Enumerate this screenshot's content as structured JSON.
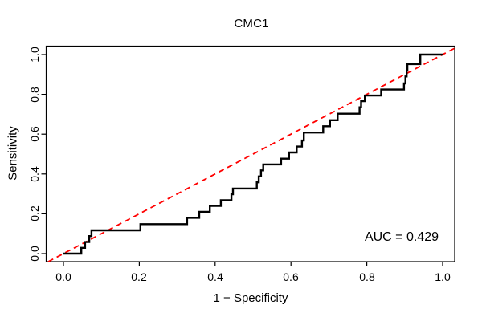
{
  "title": "CMC1",
  "plot": {
    "x_axis": {
      "label": "1 − Specificity",
      "tick_labels": [
        "0.0",
        "0.2",
        "0.4",
        "0.6",
        "0.8",
        "1.0"
      ]
    },
    "y_axis": {
      "label": "Sensitivity",
      "tick_labels": [
        "0.0",
        "0.2",
        "0.4",
        "0.6",
        "0.8",
        "1.0"
      ]
    },
    "annotation": "AUC = 0.429"
  },
  "colors": {
    "roc_curve": "#000000",
    "diagonal": "#ff0000",
    "frame": "#000000",
    "background": "#ffffff",
    "text": "#000000"
  },
  "chart_data": {
    "type": "line",
    "subtype": "roc-step-curve",
    "title": "CMC1",
    "xlabel": "1 − Specificity",
    "ylabel": "Sensitivity",
    "xlim": [
      0,
      1
    ],
    "ylim": [
      0,
      1
    ],
    "x_ticks": [
      0,
      0.2,
      0.4,
      0.6,
      0.8,
      1.0
    ],
    "y_ticks": [
      0,
      0.2,
      0.4,
      0.6,
      0.8,
      1.0
    ],
    "grid": false,
    "legend": "none",
    "auc": 0.429,
    "series": [
      {
        "name": "chance diagonal",
        "color": "#ff0000",
        "style": "dashed",
        "line_width": 1.8,
        "extend_to_frame": true,
        "points": [
          [
            0,
            0
          ],
          [
            1,
            1
          ]
        ]
      },
      {
        "name": "ROC curve",
        "color": "#000000",
        "style": "solid-step",
        "line_width": 2.4,
        "extend_to_frame": false,
        "points": [
          [
            0.0,
            0.0
          ],
          [
            0.047,
            0.0
          ],
          [
            0.047,
            0.029
          ],
          [
            0.057,
            0.029
          ],
          [
            0.057,
            0.058
          ],
          [
            0.068,
            0.058
          ],
          [
            0.068,
            0.088
          ],
          [
            0.074,
            0.088
          ],
          [
            0.074,
            0.117
          ],
          [
            0.203,
            0.117
          ],
          [
            0.203,
            0.148
          ],
          [
            0.326,
            0.148
          ],
          [
            0.326,
            0.18
          ],
          [
            0.358,
            0.18
          ],
          [
            0.358,
            0.21
          ],
          [
            0.386,
            0.21
          ],
          [
            0.386,
            0.24
          ],
          [
            0.415,
            0.24
          ],
          [
            0.415,
            0.268
          ],
          [
            0.443,
            0.268
          ],
          [
            0.443,
            0.298
          ],
          [
            0.447,
            0.298
          ],
          [
            0.447,
            0.327
          ],
          [
            0.51,
            0.327
          ],
          [
            0.51,
            0.358
          ],
          [
            0.515,
            0.358
          ],
          [
            0.515,
            0.388
          ],
          [
            0.521,
            0.388
          ],
          [
            0.521,
            0.418
          ],
          [
            0.527,
            0.418
          ],
          [
            0.527,
            0.448
          ],
          [
            0.574,
            0.448
          ],
          [
            0.574,
            0.477
          ],
          [
            0.595,
            0.477
          ],
          [
            0.595,
            0.508
          ],
          [
            0.615,
            0.508
          ],
          [
            0.615,
            0.538
          ],
          [
            0.629,
            0.538
          ],
          [
            0.629,
            0.568
          ],
          [
            0.634,
            0.568
          ],
          [
            0.634,
            0.608
          ],
          [
            0.685,
            0.608
          ],
          [
            0.685,
            0.64
          ],
          [
            0.703,
            0.64
          ],
          [
            0.703,
            0.67
          ],
          [
            0.723,
            0.67
          ],
          [
            0.723,
            0.703
          ],
          [
            0.781,
            0.703
          ],
          [
            0.781,
            0.735
          ],
          [
            0.785,
            0.735
          ],
          [
            0.785,
            0.766
          ],
          [
            0.795,
            0.766
          ],
          [
            0.795,
            0.794
          ],
          [
            0.838,
            0.794
          ],
          [
            0.838,
            0.824
          ],
          [
            0.898,
            0.824
          ],
          [
            0.898,
            0.855
          ],
          [
            0.902,
            0.855
          ],
          [
            0.902,
            0.89
          ],
          [
            0.905,
            0.89
          ],
          [
            0.905,
            0.92
          ],
          [
            0.907,
            0.92
          ],
          [
            0.907,
            0.952
          ],
          [
            0.941,
            0.952
          ],
          [
            0.941,
            1.0
          ],
          [
            1.0,
            1.0
          ]
        ]
      }
    ]
  }
}
